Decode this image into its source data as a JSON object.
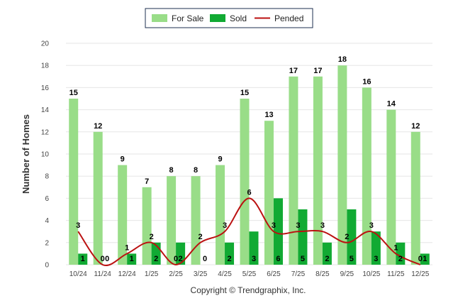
{
  "chart_data": {
    "type": "bar",
    "title": "",
    "xlabel": "",
    "ylabel": "Number of Homes",
    "ylim": [
      0,
      20
    ],
    "ytick_step": 2,
    "categories": [
      "10/24",
      "11/24",
      "12/24",
      "1/25",
      "2/25",
      "3/25",
      "4/25",
      "5/25",
      "6/25",
      "7/25",
      "8/25",
      "9/25",
      "10/25",
      "11/25",
      "12/25"
    ],
    "series": [
      {
        "name": "For Sale",
        "kind": "bar",
        "color": "#99dd88",
        "values": [
          15,
          12,
          9,
          7,
          8,
          8,
          9,
          15,
          13,
          17,
          17,
          18,
          16,
          14,
          12
        ]
      },
      {
        "name": "Sold",
        "kind": "bar",
        "color": "#11aa33",
        "values": [
          1,
          0,
          1,
          2,
          2,
          0,
          2,
          3,
          6,
          5,
          2,
          5,
          3,
          2,
          1
        ]
      },
      {
        "name": "Pended",
        "kind": "line",
        "color": "#bb1111",
        "values": [
          3,
          0,
          1,
          2,
          0,
          2,
          3,
          6,
          3,
          3,
          3,
          2,
          3,
          1,
          0
        ]
      }
    ],
    "legend_position": "top-center",
    "footer": "Copyright © Trendgraphix, Inc."
  }
}
